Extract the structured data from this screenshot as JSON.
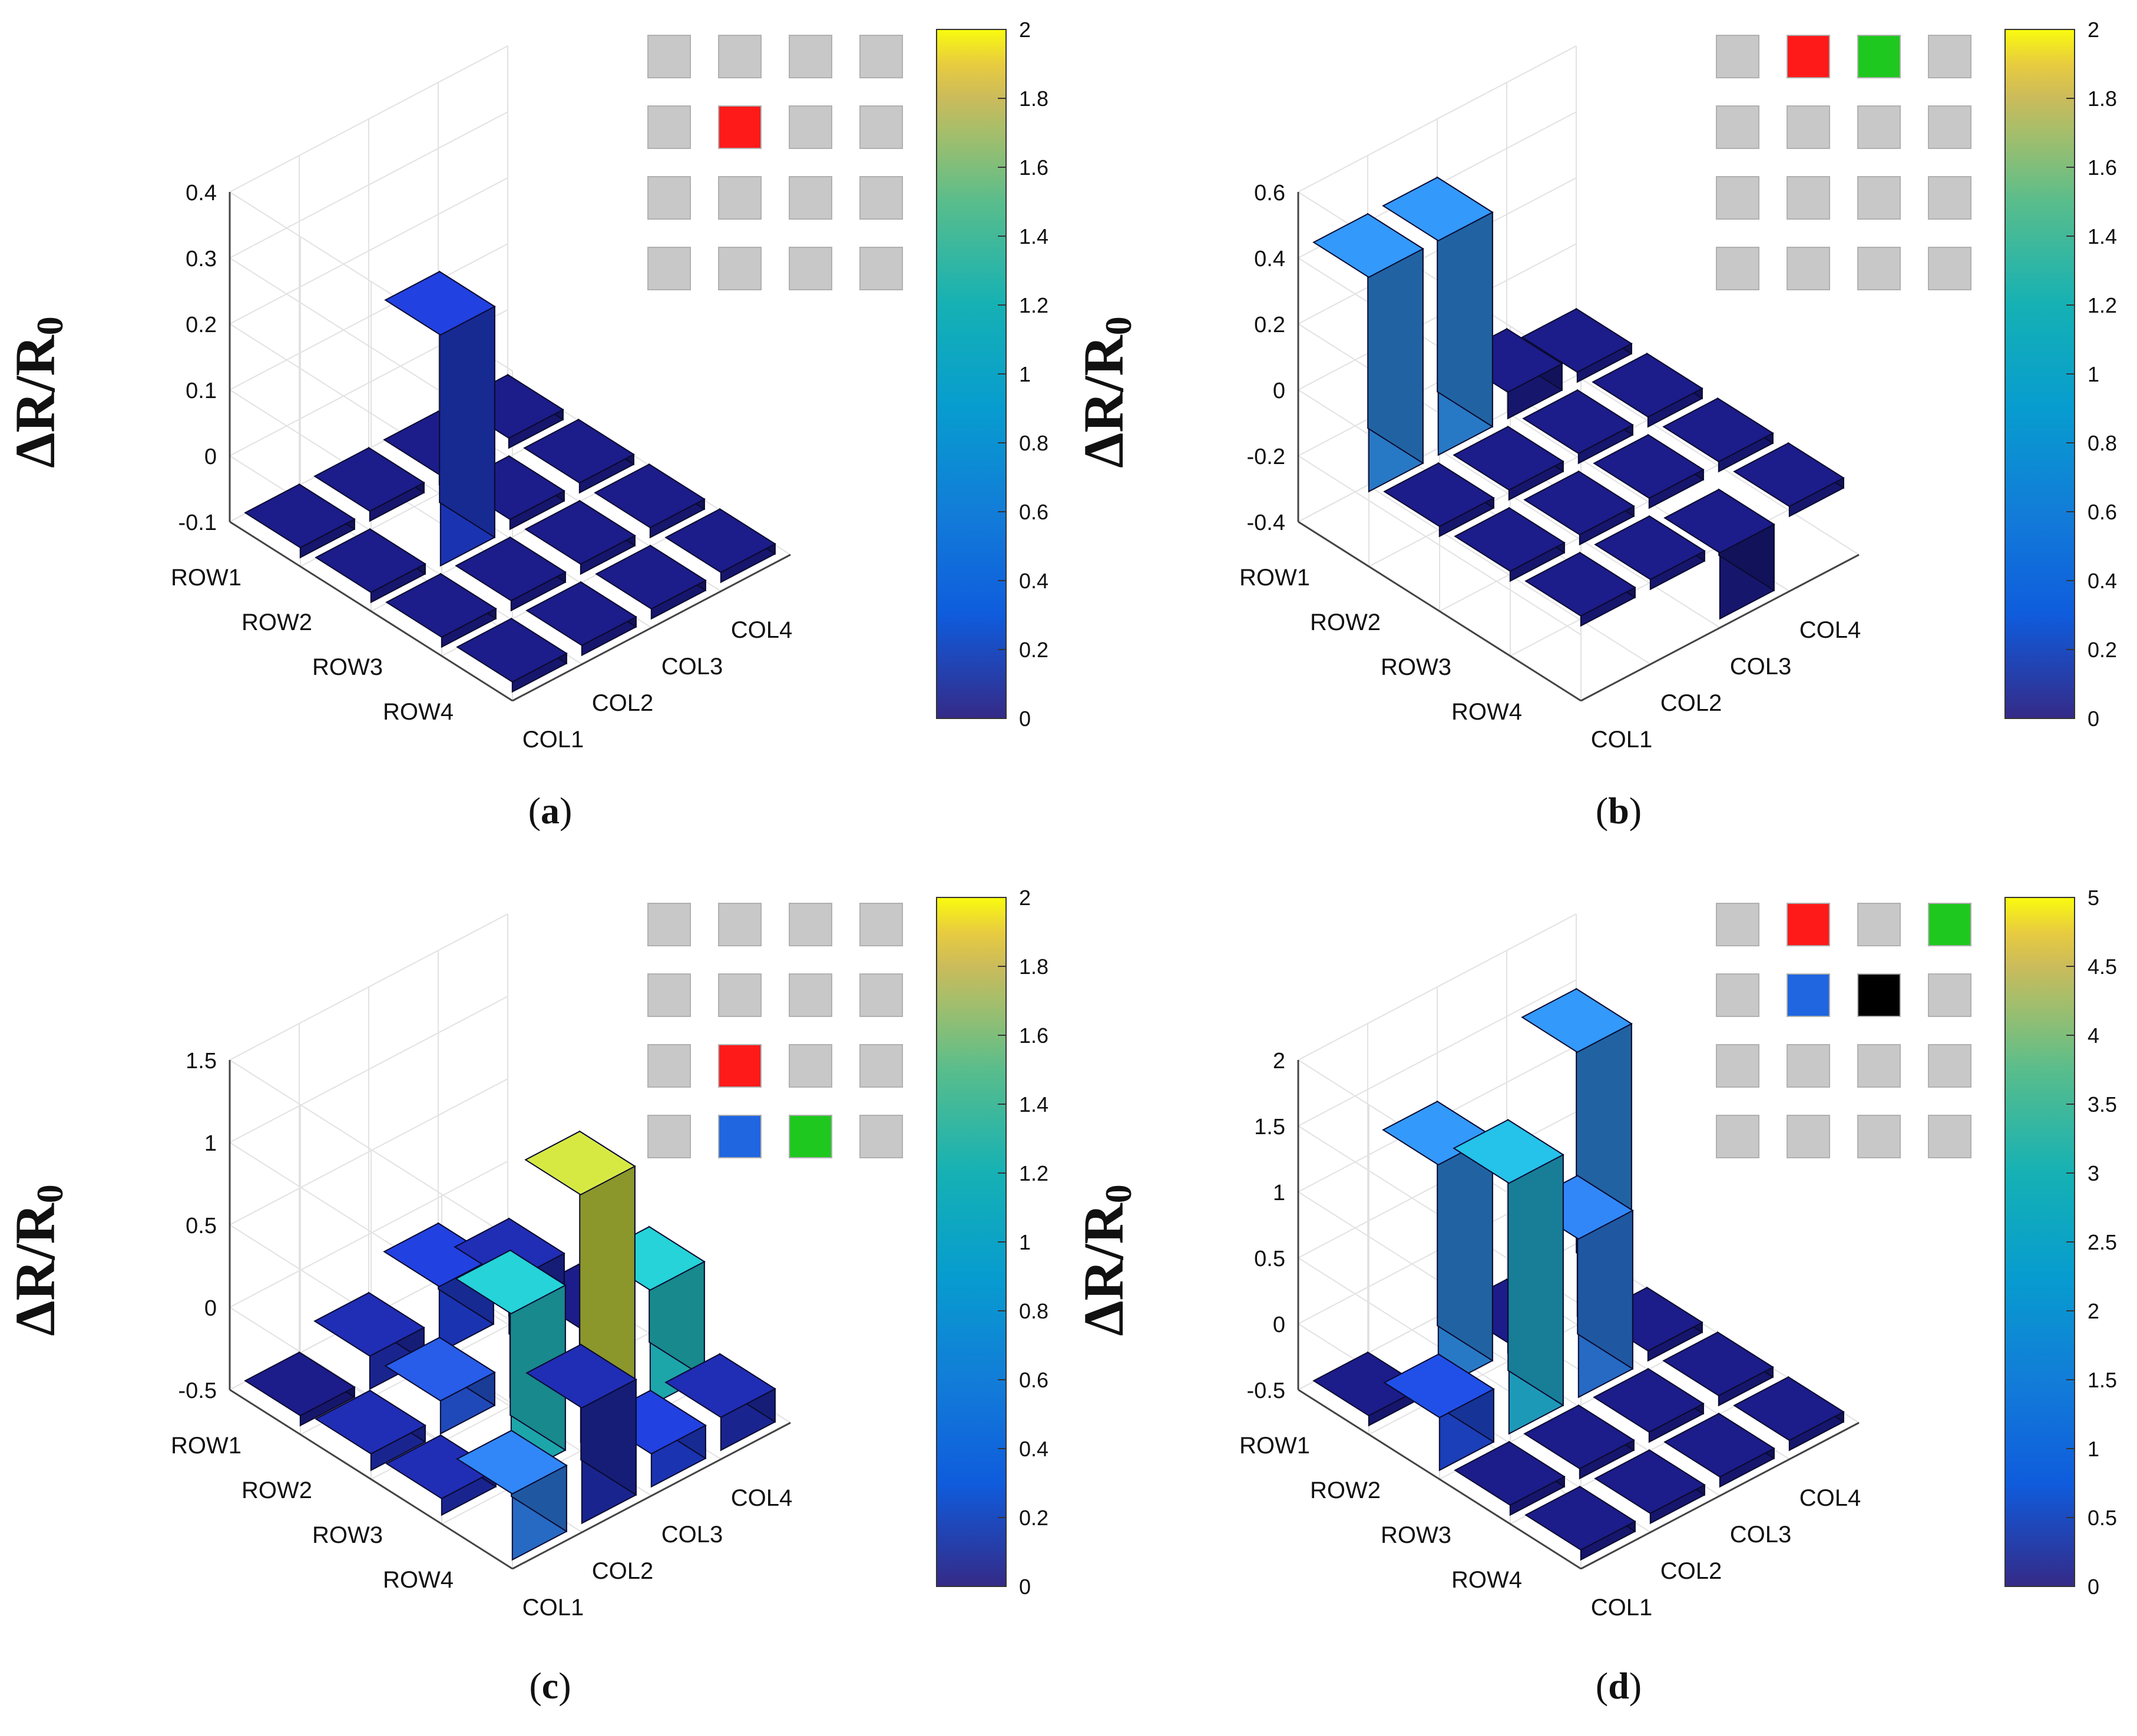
{
  "figure": {
    "panels": [
      {
        "id": "a",
        "caption_open": "(",
        "caption_letter": "a",
        "caption_close": ")"
      },
      {
        "id": "b",
        "caption_open": "(",
        "caption_letter": "b",
        "caption_close": ")"
      },
      {
        "id": "c",
        "caption_open": "(",
        "caption_letter": "c",
        "caption_close": ")"
      },
      {
        "id": "d",
        "caption_open": "(",
        "caption_letter": "d",
        "caption_close": ")"
      }
    ]
  },
  "chart_data": [
    {
      "type": "bar3d",
      "panel": "a",
      "ylabel": "ΔR/R",
      "ylabel_sub": "0",
      "row_labels": [
        "ROW1",
        "ROW2",
        "ROW3",
        "ROW4"
      ],
      "col_labels": [
        "COL1",
        "COL2",
        "COL3",
        "COL4"
      ],
      "zlim": [
        -0.1,
        0.4
      ],
      "zticks": [
        "-0.1",
        "0",
        "0.1",
        "0.2",
        "0.3",
        "0.4"
      ],
      "zero_tick": "0",
      "bar_base": -0.1,
      "values": [
        [
          -0.1,
          -0.1,
          -0.1,
          -0.1
        ],
        [
          -0.1,
          0.25,
          -0.1,
          -0.1
        ],
        [
          -0.1,
          -0.1,
          -0.1,
          -0.1
        ],
        [
          -0.1,
          -0.1,
          -0.1,
          -0.1
        ]
      ],
      "colorbar": {
        "min": 0,
        "max": 2,
        "ticks": [
          "0",
          "0.2",
          "0.4",
          "0.6",
          "0.8",
          "1",
          "1.2",
          "1.4",
          "1.6",
          "1.8",
          "2"
        ]
      },
      "colors": [
        [
          "#1a1a80",
          "#1a1a80",
          "#1a1a80",
          "#1a1a80"
        ],
        [
          "#1a1a80",
          "#1f3cd0",
          "#1a1a80",
          "#1a1a80"
        ],
        [
          "#1a1a80",
          "#1a1a80",
          "#1a1a80",
          "#1a1a80"
        ],
        [
          "#1a1a80",
          "#1a1a80",
          "#1a1a80",
          "#1a1a80"
        ]
      ],
      "inset": [
        [
          "gray",
          "gray",
          "gray",
          "gray"
        ],
        [
          "gray",
          "red",
          "gray",
          "gray"
        ],
        [
          "gray",
          "gray",
          "gray",
          "gray"
        ],
        [
          "gray",
          "gray",
          "gray",
          "gray"
        ]
      ]
    },
    {
      "type": "bar3d",
      "panel": "b",
      "ylabel": "ΔR/R",
      "ylabel_sub": "0",
      "row_labels": [
        "ROW1",
        "ROW2",
        "ROW3",
        "ROW4"
      ],
      "col_labels": [
        "COL1",
        "COL2",
        "COL3",
        "COL4"
      ],
      "zlim": [
        -0.4,
        0.6
      ],
      "zticks": [
        "-0.4",
        "-0.2",
        "0",
        "0.2",
        "0.4",
        "0.6"
      ],
      "zero_tick": "0",
      "bar_base": -0.2,
      "values": [
        [
          0.45,
          0.45,
          -0.12,
          -0.2
        ],
        [
          -0.2,
          -0.2,
          -0.2,
          -0.2
        ],
        [
          -0.2,
          -0.2,
          -0.2,
          -0.2
        ],
        [
          -0.2,
          -0.2,
          -0.4,
          -0.2
        ]
      ],
      "colorbar": {
        "min": 0,
        "max": 2,
        "ticks": [
          "0",
          "0.2",
          "0.4",
          "0.6",
          "0.8",
          "1",
          "1.2",
          "1.4",
          "1.6",
          "1.8",
          "2"
        ]
      },
      "colors": [
        [
          "#2f8ee8",
          "#2f8ee8",
          "#1a1a80",
          "#1a1a80"
        ],
        [
          "#1a1a80",
          "#1a1a80",
          "#1a1a80",
          "#1a1a80"
        ],
        [
          "#1a1a80",
          "#1a1a80",
          "#1a1a80",
          "#1a1a80"
        ],
        [
          "#1a1a80",
          "#1a1a80",
          "#1a1a80",
          "#1a1a80"
        ]
      ],
      "inset": [
        [
          "gray",
          "red",
          "green",
          "gray"
        ],
        [
          "gray",
          "gray",
          "gray",
          "gray"
        ],
        [
          "gray",
          "gray",
          "gray",
          "gray"
        ],
        [
          "gray",
          "gray",
          "gray",
          "gray"
        ]
      ]
    },
    {
      "type": "bar3d",
      "panel": "c",
      "ylabel": "ΔR/R",
      "ylabel_sub": "0",
      "row_labels": [
        "ROW1",
        "ROW2",
        "ROW3",
        "ROW4"
      ],
      "col_labels": [
        "COL1",
        "COL2",
        "COL3",
        "COL4"
      ],
      "zlim": [
        -0.5,
        1.5
      ],
      "zticks": [
        "-0.5",
        "0",
        "0.5",
        "1",
        "1.5"
      ],
      "zero_tick": "0",
      "bar_base": -0.5,
      "values": [
        [
          -0.5,
          -0.3,
          -0.1,
          -0.5
        ],
        [
          -0.4,
          -0.3,
          0.2,
          -0.3
        ],
        [
          -0.4,
          0.5,
          1.0,
          0.2
        ],
        [
          -0.1,
          0.2,
          -0.3,
          -0.3
        ]
      ],
      "colorbar": {
        "min": 0,
        "max": 2,
        "ticks": [
          "0",
          "0.2",
          "0.4",
          "0.6",
          "0.8",
          "1",
          "1.2",
          "1.4",
          "1.6",
          "1.8",
          "2"
        ]
      },
      "colors": [
        [
          "#1a1a80",
          "#1e2aa8",
          "#1f3cd0",
          "#1a1a80"
        ],
        [
          "#1e2aa8",
          "#2456d8",
          "#1e2aa8",
          "#1a1a80"
        ],
        [
          "#1e2aa8",
          "#22c3c8",
          "#c6d83e",
          "#22c3c8"
        ],
        [
          "#2d7de6",
          "#1e2aa8",
          "#1f3cd0",
          "#1e2aa8"
        ]
      ],
      "inset": [
        [
          "gray",
          "gray",
          "gray",
          "gray"
        ],
        [
          "gray",
          "gray",
          "gray",
          "gray"
        ],
        [
          "gray",
          "red",
          "gray",
          "gray"
        ],
        [
          "gray",
          "blue",
          "green",
          "gray"
        ]
      ]
    },
    {
      "type": "bar3d",
      "panel": "d",
      "ylabel": "ΔR/R",
      "ylabel_sub": "0",
      "row_labels": [
        "ROW1",
        "ROW2",
        "ROW3",
        "ROW4"
      ],
      "col_labels": [
        "COL1",
        "COL2",
        "COL3",
        "COL4"
      ],
      "zlim": [
        -0.5,
        2
      ],
      "zticks": [
        "-0.5",
        "0",
        "0.5",
        "1",
        "1.5",
        "2"
      ],
      "zero_tick": "0",
      "bar_base": -0.5,
      "values": [
        [
          -0.5,
          1.2,
          -0.5,
          1.5
        ],
        [
          -0.1,
          1.4,
          0.7,
          -0.5
        ],
        [
          -0.5,
          -0.5,
          -0.5,
          -0.5
        ],
        [
          -0.5,
          -0.5,
          -0.5,
          -0.5
        ]
      ],
      "colorbar": {
        "min": 0,
        "max": 5,
        "ticks": [
          "0",
          "0.5",
          "1",
          "1.5",
          "2",
          "2.5",
          "3",
          "3.5",
          "4",
          "4.5",
          "5"
        ]
      },
      "colors": [
        [
          "#1a1a80",
          "#2f8ee8",
          "#1a1a80",
          "#2f8ee8"
        ],
        [
          "#1f4ad8",
          "#22b4d8",
          "#2d7de6",
          "#1a1a80"
        ],
        [
          "#1a1a80",
          "#1a1a80",
          "#1a1a80",
          "#1a1a80"
        ],
        [
          "#1a1a80",
          "#1a1a80",
          "#1a1a80",
          "#1a1a80"
        ]
      ],
      "inset": [
        [
          "gray",
          "red",
          "gray",
          "green"
        ],
        [
          "gray",
          "blue",
          "black",
          "gray"
        ],
        [
          "gray",
          "gray",
          "gray",
          "gray"
        ],
        [
          "gray",
          "gray",
          "gray",
          "gray"
        ]
      ]
    }
  ],
  "colors": {
    "inset_gray": "#c8c8c8",
    "inset_red": "#ff1a1a",
    "inset_green": "#1ec81e",
    "inset_blue": "#1f66e0",
    "inset_black": "#000000",
    "grid": "#e2e2e2",
    "axis": "#444444"
  }
}
